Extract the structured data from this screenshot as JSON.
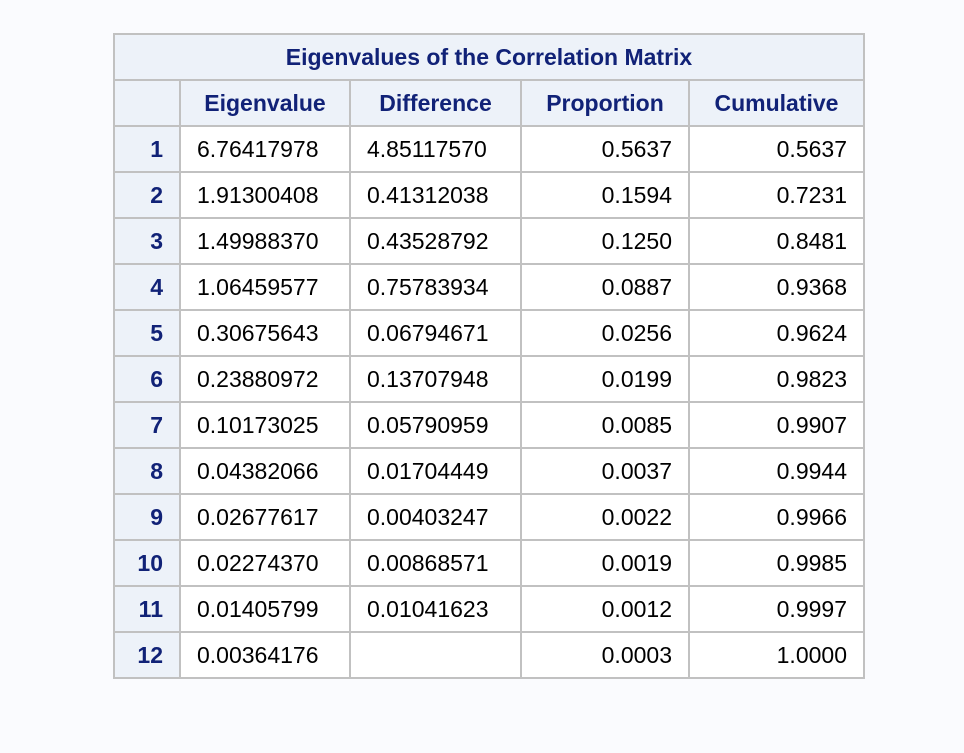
{
  "table": {
    "title": "Eigenvalues of the Correlation Matrix",
    "columns": [
      "Eigenvalue",
      "Difference",
      "Proportion",
      "Cumulative"
    ],
    "rows": [
      {
        "n": "1",
        "eigenvalue": "6.76417978",
        "difference": "4.85117570",
        "proportion": "0.5637",
        "cumulative": "0.5637"
      },
      {
        "n": "2",
        "eigenvalue": "1.91300408",
        "difference": "0.41312038",
        "proportion": "0.1594",
        "cumulative": "0.7231"
      },
      {
        "n": "3",
        "eigenvalue": "1.49988370",
        "difference": "0.43528792",
        "proportion": "0.1250",
        "cumulative": "0.8481"
      },
      {
        "n": "4",
        "eigenvalue": "1.06459577",
        "difference": "0.75783934",
        "proportion": "0.0887",
        "cumulative": "0.9368"
      },
      {
        "n": "5",
        "eigenvalue": "0.30675643",
        "difference": "0.06794671",
        "proportion": "0.0256",
        "cumulative": "0.9624"
      },
      {
        "n": "6",
        "eigenvalue": "0.23880972",
        "difference": "0.13707948",
        "proportion": "0.0199",
        "cumulative": "0.9823"
      },
      {
        "n": "7",
        "eigenvalue": "0.10173025",
        "difference": "0.05790959",
        "proportion": "0.0085",
        "cumulative": "0.9907"
      },
      {
        "n": "8",
        "eigenvalue": "0.04382066",
        "difference": "0.01704449",
        "proportion": "0.0037",
        "cumulative": "0.9944"
      },
      {
        "n": "9",
        "eigenvalue": "0.02677617",
        "difference": "0.00403247",
        "proportion": "0.0022",
        "cumulative": "0.9966"
      },
      {
        "n": "10",
        "eigenvalue": "0.02274370",
        "difference": "0.00868571",
        "proportion": "0.0019",
        "cumulative": "0.9985"
      },
      {
        "n": "11",
        "eigenvalue": "0.01405799",
        "difference": "0.01041623",
        "proportion": "0.0012",
        "cumulative": "0.9997"
      },
      {
        "n": "12",
        "eigenvalue": "0.00364176",
        "difference": "",
        "proportion": "0.0003",
        "cumulative": "1.0000"
      }
    ]
  },
  "colors": {
    "header_text": "#112277",
    "header_bg": "#edf2f9",
    "border": "#c1c1c1",
    "page_bg": "#fafbfe"
  }
}
